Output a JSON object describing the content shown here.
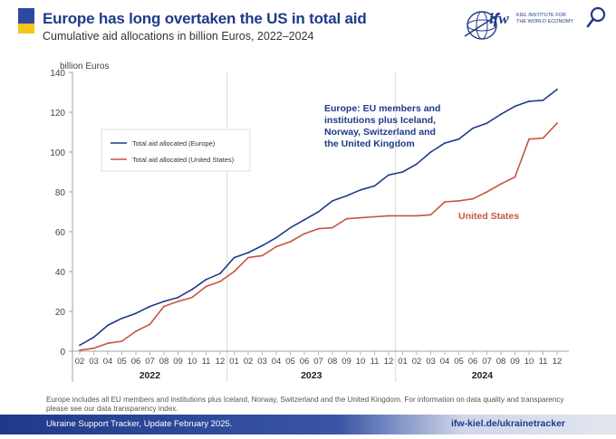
{
  "header": {
    "title": "Europe has long overtaken the US in total aid",
    "subtitle": "Cumulative aid allocations in billion Euros, 2022–2024",
    "logo_text": "ifw",
    "logo_lines": [
      "KIEL INSTITUTE FOR",
      "THE WORLD ECONOMY"
    ]
  },
  "colors": {
    "europe": "#1f3a8a",
    "us": "#c8553d",
    "flag_blue": "#2b4aa0",
    "flag_yellow": "#f5c518"
  },
  "chart_data": {
    "type": "line",
    "ylabel": "billion Euros",
    "ylim": [
      0,
      140
    ],
    "yticks": [
      0,
      20,
      40,
      60,
      80,
      100,
      120,
      140
    ],
    "grid": "vertical year separators only",
    "legend_position": "top-left",
    "categories": [
      "02",
      "03",
      "04",
      "05",
      "06",
      "07",
      "08",
      "09",
      "10",
      "11",
      "12",
      "01",
      "02",
      "03",
      "04",
      "05",
      "06",
      "07",
      "08",
      "09",
      "10",
      "11",
      "12",
      "01",
      "02",
      "03",
      "04",
      "05",
      "06",
      "07",
      "08",
      "09",
      "10",
      "11",
      "12"
    ],
    "years": [
      {
        "label": "2022",
        "start": 0,
        "end": 10
      },
      {
        "label": "2023",
        "start": 11,
        "end": 22
      },
      {
        "label": "2024",
        "start": 23,
        "end": 34
      }
    ],
    "series": [
      {
        "name": "Total aid allocated (Europe)",
        "key": "europe",
        "values": [
          3,
          7,
          13,
          16.5,
          19,
          22.5,
          25,
          27,
          31,
          36,
          39,
          47,
          49.5,
          53,
          57,
          62,
          66,
          70,
          75.5,
          78,
          81,
          83,
          88.5,
          90,
          94,
          100,
          104.5,
          106.5,
          112,
          114.5,
          119,
          123,
          125.5,
          126,
          131.5
        ]
      },
      {
        "name": "Total aid allocated (United States)",
        "key": "us",
        "values": [
          0.5,
          1.5,
          4,
          5,
          10,
          13.5,
          22.5,
          25,
          27,
          32.5,
          35,
          40,
          47,
          48,
          52.5,
          55,
          59,
          61.5,
          62,
          66.5,
          67,
          67.5,
          68,
          68,
          68,
          68.5,
          75,
          75.5,
          76.5,
          80,
          84,
          87.5,
          106.5,
          107,
          114.5
        ]
      }
    ],
    "annotations": {
      "europe": [
        "Europe: EU members and",
        "institutions plus Iceland,",
        "Norway, Switzerland and",
        "the United Kingdom"
      ],
      "us": "United States"
    }
  },
  "note": "Europe includes all EU members and institutions plus Iceland, Norway, Switzerland and the United Kingdom. For information on data quality and transparency please see our data transparency index.",
  "footer": {
    "left": "Ukraine Support Tracker, Update February 2025.",
    "right": "ifw-kiel.de/ukrainetracker"
  }
}
